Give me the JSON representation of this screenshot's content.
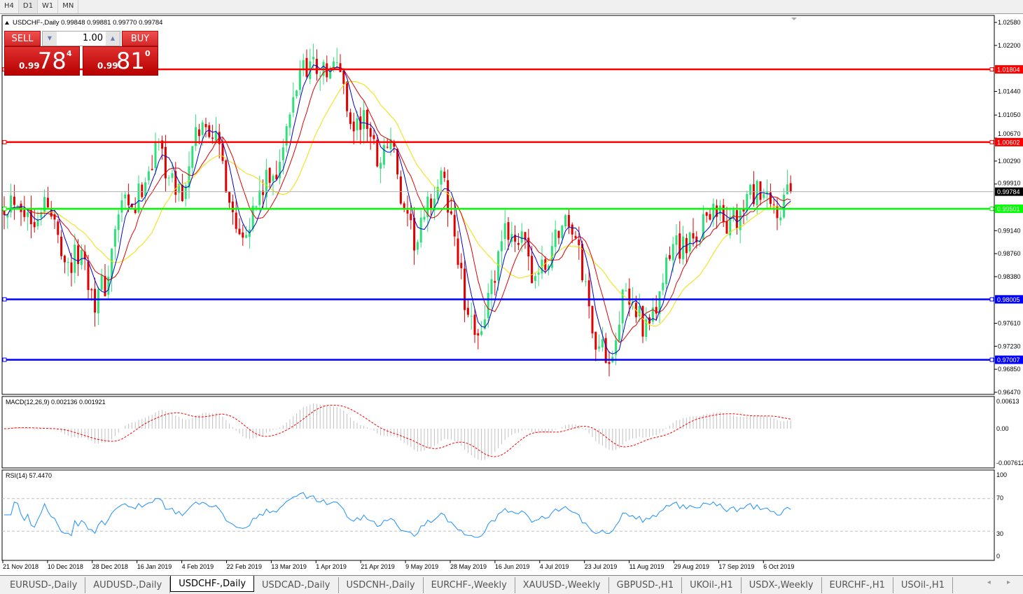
{
  "timeframes": [
    "H4",
    "D1",
    "W1",
    "MN"
  ],
  "active_timeframe": "D1",
  "chart": {
    "header": "USDCHF-,Daily",
    "ohlc": "0.99848 0.99881 0.99770 0.99784",
    "current_price": "0.99784",
    "price_axis": [
      "1.02580",
      "1.02200",
      "1.01440",
      "1.01050",
      "1.00670",
      "1.00290",
      "0.99910",
      "0.99140",
      "0.98760",
      "0.98380",
      "0.97610",
      "0.97230",
      "0.96850",
      "0.96470"
    ],
    "price_range": [
      0.9647,
      1.0258
    ],
    "levels": [
      {
        "price": 1.01804,
        "label": "1.01804",
        "color": "#ff0000"
      },
      {
        "price": 1.00602,
        "label": "1.00602",
        "color": "#ff0000"
      },
      {
        "price": 0.99501,
        "label": "0.99501",
        "color": "#00ff00"
      },
      {
        "price": 0.98005,
        "label": "0.98005",
        "color": "#0000ff"
      },
      {
        "price": 0.97007,
        "label": "0.97007",
        "color": "#0000ff"
      }
    ],
    "date_axis": [
      "21 Nov 2018",
      "10 Dec 2018",
      "28 Dec 2018",
      "16 Jan 2019",
      "4 Feb 2019",
      "22 Feb 2019",
      "13 Mar 2019",
      "1 Apr 2019",
      "21 Apr 2019",
      "9 May 2019",
      "28 May 2019",
      "16 Jun 2019",
      "4 Jul 2019",
      "23 Jul 2019",
      "11 Aug 2019",
      "29 Aug 2019",
      "17 Sep 2019",
      "6 Oct 2019"
    ],
    "approx_closes": [
      0.996,
      0.9975,
      0.993,
      0.9965,
      0.992,
      0.9855,
      0.988,
      0.98,
      0.983,
      0.996,
      0.994,
      1.001,
      1.006,
      0.999,
      0.9975,
      1.008,
      1.009,
      1.002,
      0.992,
      0.993,
      0.998,
      1.001,
      1.008,
      1.019,
      1.019,
      1.017,
      1.019,
      1.008,
      1.01,
      1.003,
      1.007,
      0.993,
      0.989,
      0.996,
      1.0,
      0.99,
      0.975,
      0.976,
      0.983,
      0.992,
      0.99,
      0.984,
      0.985,
      0.992,
      0.993,
      0.983,
      0.972,
      0.971,
      0.98,
      0.979,
      0.974,
      0.982,
      0.99,
      0.988,
      0.992,
      0.996,
      0.992,
      0.993,
      0.998,
      0.996,
      0.994,
      0.9978
    ],
    "colors": {
      "up": "#2ee07a",
      "down": "#e00000",
      "ma_fast": "#0000cc",
      "ma_mid": "#dd0000",
      "ma_slow": "#f0e000"
    }
  },
  "trade_panel": {
    "sell_label": "SELL",
    "buy_label": "BUY",
    "lot": "1.00",
    "sell_prefix": "0.99",
    "sell_big": "78",
    "sell_sup": "4",
    "buy_prefix": "0.99",
    "buy_big": "81",
    "buy_sup": "0"
  },
  "macd": {
    "label": "MACD(12,26,9) 0.002136 0.001921",
    "axis": [
      "0.00613",
      "0.00",
      "-0.007612"
    ]
  },
  "rsi": {
    "label": "RSI(14) 57.4470",
    "axis": [
      "100",
      "70",
      "30",
      "0"
    ]
  },
  "tabs": [
    "EURUSD-,Daily",
    "AUDUSD-,Daily",
    "USDCHF-,Daily",
    "USDCAD-,Daily",
    "USDCNH-,Daily",
    "EURCHF-,Weekly",
    "XAUUSD-,Weekly",
    "GBPUSD-,H1",
    "UKOil-,H1",
    "USDX-,Weekly",
    "EURCHF-,H1",
    "USOil-,H1"
  ],
  "active_tab": "USDCHF-,Daily",
  "tab_scroll": "◂ ▸"
}
